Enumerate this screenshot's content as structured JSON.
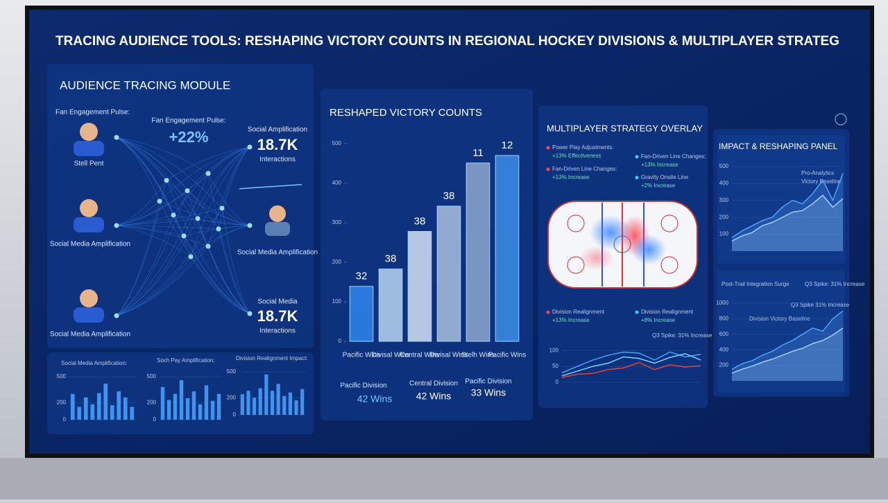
{
  "header": {
    "title": "TRACING AUDIENCE TOOLS: RESHAPING VICTORY COUNTS IN REGIONAL HOCKEY DIVISIONS & MULTIPLAYER STRATEG"
  },
  "audience_module": {
    "title": "AUDIENCE TRACING MODULE",
    "left": [
      "Fan Engagement Pulse:",
      "Stell Pent",
      "Social Media Amplification",
      "Social Media Amplification"
    ],
    "center": {
      "label": "Fan Engagement Pulse:",
      "value": "+22%"
    },
    "right": [
      {
        "label": "Social Amplification",
        "value": "18.7K",
        "unit": "Interactions"
      },
      {
        "label": "Social Media Amplification"
      },
      {
        "label": "Social Media",
        "value": "18.7K",
        "unit": "Interactions"
      }
    ]
  },
  "division_summary": [
    {
      "division": "Pacific Division",
      "wins": "42 Wins"
    },
    {
      "division": "Central Division",
      "wins": "42 Wins"
    },
    {
      "division": "Pacific Division",
      "wins": "33 Wins"
    }
  ],
  "strategy_overlay": {
    "title": "MULTIPLAYER STRATEGY OVERLAY",
    "notes": [
      {
        "label": "Power Play Adjustments:",
        "change": "+13% Effectiveness"
      },
      {
        "label": "Fan-Driven Line Changes:",
        "change": "+13% Increase"
      },
      {
        "label": "Fan-Driven Line Changes:",
        "change": "+13% Increase"
      },
      {
        "label": "Gravity Onsite Line",
        "change": "+2% Increase"
      },
      {
        "label": "Division Realignment",
        "change": "+13% Increase"
      },
      {
        "label": "Division Realignment",
        "change": "+8% Increase"
      }
    ]
  },
  "impact_panel": {
    "title": "IMPACT & RESHAPING PANEL"
  },
  "chart_data": [
    {
      "type": "bar",
      "title": "RESHAPED VICTORY COUNTS",
      "categories": [
        "Pacific Wins",
        "Divisal Wins",
        "Central Wins",
        "Divisal Wins",
        "Stelh Wins",
        "Pacific Wins"
      ],
      "values": [
        139,
        183,
        278,
        342,
        451,
        470
      ],
      "annotations": [
        "32",
        "38",
        "38",
        "38",
        "11",
        "12"
      ],
      "colors": [
        "#2f86ee",
        "#b9d4f2",
        "#d3e2f4",
        "#a9bfdf",
        "#8ea7cf",
        "#3b8ee8"
      ],
      "ylim": [
        0,
        500
      ],
      "yticks": [
        0,
        100,
        200,
        300,
        400,
        500
      ]
    },
    {
      "type": "bar",
      "title": "Social Media Amplification:",
      "values": [
        300,
        150,
        260,
        180,
        310,
        420,
        170,
        330,
        260,
        150
      ],
      "color": "#3f94f0",
      "ylim": [
        0,
        500
      ],
      "yticks": [
        0,
        200,
        500
      ]
    },
    {
      "type": "bar",
      "title": "Soch Pay Amplification:",
      "values": [
        380,
        230,
        300,
        460,
        250,
        330,
        180,
        400,
        220,
        300
      ],
      "color": "#3f94f0",
      "ylim": [
        0,
        500
      ],
      "yticks": [
        0,
        200,
        500
      ]
    },
    {
      "type": "bar",
      "title": "Division Realignment Impact:",
      "values": [
        240,
        280,
        200,
        310,
        470,
        280,
        360,
        220,
        260,
        170,
        300
      ],
      "color": "#3f94f0",
      "ylim": [
        0,
        500
      ],
      "yticks": [
        0,
        200,
        500
      ]
    },
    {
      "type": "line",
      "notes": [
        "Q3 Spike: 31% Increase"
      ],
      "series": [
        {
          "color": "#3fa6ff",
          "values": [
            30,
            50,
            70,
            85,
            95,
            92,
            70,
            95,
            80,
            88
          ]
        },
        {
          "color": "#7fd1ff",
          "values": [
            20,
            35,
            50,
            60,
            80,
            75,
            60,
            78,
            90,
            70
          ]
        },
        {
          "color": "#e0453a",
          "values": [
            15,
            25,
            28,
            40,
            45,
            62,
            40,
            55,
            48,
            52
          ]
        }
      ],
      "ylim": [
        0,
        120
      ],
      "yticks": [
        0,
        50,
        100
      ]
    },
    {
      "type": "area",
      "notes": [
        "Pro-Analytics",
        "Victory Baseline"
      ],
      "series": [
        {
          "color": "#4fa3ff",
          "values": [
            80,
            120,
            150,
            180,
            200,
            260,
            300,
            280,
            340,
            420,
            300,
            460
          ]
        },
        {
          "color": "#9fcfff",
          "values": [
            60,
            90,
            110,
            150,
            170,
            200,
            230,
            240,
            280,
            330,
            260,
            310
          ]
        }
      ],
      "ylim": [
        0,
        500
      ],
      "yticks": [
        100,
        200,
        300,
        400,
        500
      ]
    },
    {
      "type": "area",
      "title": "Post-Trail Integration Surge",
      "notes": [
        "Q3 Spike: 31% Increase",
        "Q3 Spike 31% Increase",
        "Division Victory Baseline"
      ],
      "series": [
        {
          "color": "#4fa3ff",
          "values": [
            150,
            220,
            260,
            330,
            380,
            460,
            520,
            600,
            680,
            640,
            800,
            900
          ]
        },
        {
          "color": "#9fcfff",
          "values": [
            100,
            150,
            190,
            240,
            280,
            330,
            380,
            420,
            480,
            520,
            590,
            680
          ]
        }
      ],
      "ylim": [
        0,
        1000
      ],
      "yticks": [
        200,
        400,
        600,
        800,
        1000
      ]
    }
  ]
}
